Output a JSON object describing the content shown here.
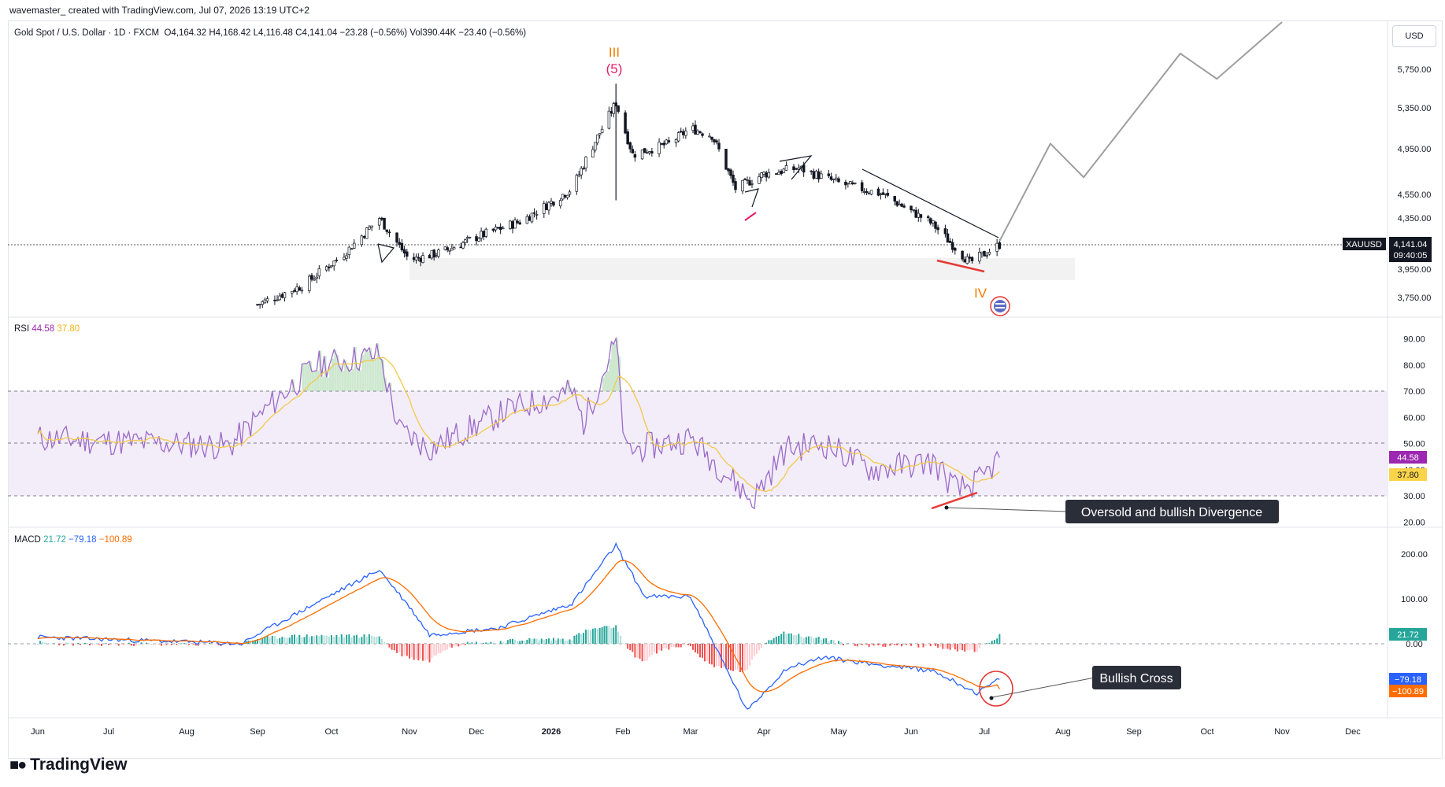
{
  "top_bar": {
    "text": "wavemaster_ created with TradingView.com, Jul 07, 2026 13:19 UTC+2"
  },
  "symbol_header": {
    "name": "Gold Spot / U.S. Dollar · 1D · FXCM",
    "open": "O4,164.32",
    "high": "H4,168.42",
    "low": "L4,116.48",
    "close": "C4,141.04",
    "change": "−23.28 (−0.56%)",
    "volume": "Vol390.44K",
    "vol_change": "−23.40 (−0.56%)"
  },
  "currency_button": "USD",
  "price_axis": {
    "ticks": [
      "5,750.00",
      "5,350.00",
      "4,950.00",
      "4,550.00",
      "4,350.00",
      "3,950.00",
      "3,750.00"
    ],
    "last_symbol": "XAUUSD",
    "last_price": "4,141.04",
    "countdown": "09:40:05"
  },
  "wave_labels": {
    "roman_top": "III",
    "sub_top": "(5)",
    "roman_bottom": "IV"
  },
  "rsi": {
    "header_name": "RSI",
    "value": "44.58",
    "ma_value": "37.80",
    "ticks": [
      "90.00",
      "80.00",
      "70.00",
      "60.00",
      "50.00",
      "40.00",
      "30.00",
      "20.00"
    ],
    "annotation": "Oversold and bullish Divergence"
  },
  "macd": {
    "header_name": "MACD",
    "hist": "21.72",
    "macd_line": "−79.18",
    "signal": "−100.89",
    "ticks": [
      "200.00",
      "100.00",
      "0.00"
    ],
    "annotation": "Bullish Cross"
  },
  "time_axis": [
    "Jun",
    "Jul",
    "Aug",
    "Sep",
    "Oct",
    "Nov",
    "Dec",
    "2026",
    "Feb",
    "Mar",
    "Apr",
    "May",
    "Jun",
    "Jul",
    "Aug",
    "Sep",
    "Oct",
    "Nov",
    "Dec"
  ],
  "footer": {
    "brand": "TradingView"
  },
  "colors": {
    "up": "#26a69a",
    "down": "#ef5350",
    "rsi_line": "#9c6ac9",
    "rsi_ma": "#f2c94c",
    "macd_line": "#2962ff",
    "signal_line": "#ff6d00",
    "wave_orange": "#f57c00",
    "wave_pink": "#e91e63"
  },
  "chart_data": [
    {
      "type": "candlestick",
      "title": "Gold Spot / U.S. Dollar · 1D · FXCM",
      "x_range": [
        "Jun 2025",
        "Dec 2026"
      ],
      "ylim": [
        3650,
        6050
      ],
      "close_path": [
        [
          "2025-09-01",
          3700
        ],
        [
          "2025-09-20",
          3840
        ],
        [
          "2025-10-05",
          4050
        ],
        [
          "2025-10-20",
          4350
        ],
        [
          "2025-11-01",
          4020
        ],
        [
          "2025-11-15",
          4080
        ],
        [
          "2025-12-01",
          4200
        ],
        [
          "2025-12-20",
          4330
        ],
        [
          "2026-01-10",
          4600
        ],
        [
          "2026-01-29",
          5400
        ],
        [
          "2026-02-05",
          4900
        ],
        [
          "2026-02-20",
          5000
        ],
        [
          "2026-03-01",
          5150
        ],
        [
          "2026-03-10",
          5080
        ],
        [
          "2026-03-20",
          4600
        ],
        [
          "2026-04-01",
          4730
        ],
        [
          "2026-04-15",
          4780
        ],
        [
          "2026-05-01",
          4650
        ],
        [
          "2026-05-20",
          4550
        ],
        [
          "2026-06-10",
          4300
        ],
        [
          "2026-06-25",
          4000
        ],
        [
          "2026-07-07",
          4141.04
        ]
      ],
      "projection": [
        [
          "2026-07-07",
          4170
        ],
        [
          "2026-07-27",
          5000
        ],
        [
          "2026-08-10",
          4700
        ],
        [
          "2026-09-20",
          5850
        ],
        [
          "2026-10-05",
          5650
        ],
        [
          "2026-11-01",
          6050
        ]
      ],
      "support_zone": [
        3870,
        3990
      ],
      "last": 4141.04
    },
    {
      "type": "line",
      "title": "RSI",
      "ylim": [
        20,
        90
      ],
      "bands": [
        30,
        70
      ],
      "series": [
        {
          "name": "RSI",
          "value": 44.58
        },
        {
          "name": "RSI MA",
          "value": 37.8
        }
      ]
    },
    {
      "type": "line",
      "title": "MACD",
      "ylim": [
        -165,
        250
      ],
      "series": [
        {
          "name": "Histogram",
          "value": 21.72
        },
        {
          "name": "MACD",
          "value": -79.18
        },
        {
          "name": "Signal",
          "value": -100.89
        }
      ]
    }
  ]
}
